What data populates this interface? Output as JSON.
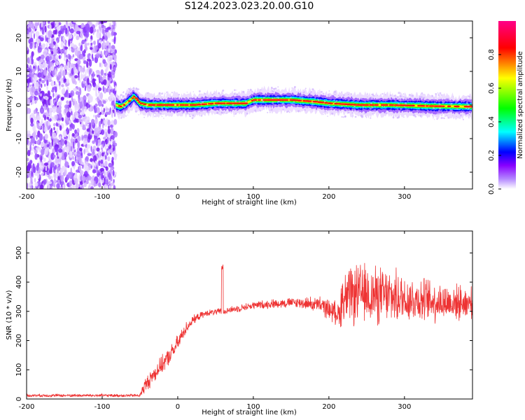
{
  "title": "S124.2023.023.20.00.G10",
  "chart_data": [
    {
      "type": "heatmap",
      "xlabel": "Height of straight line (km)",
      "ylabel": "Frequency (Hz)",
      "xlim": [
        -200,
        390
      ],
      "ylim": [
        -25,
        25
      ],
      "xticks": [
        -200,
        -100,
        0,
        100,
        200,
        300
      ],
      "yticks": [
        -20,
        -10,
        0,
        10,
        20
      ],
      "colorbar": {
        "label": "Normalized spectral amplitude",
        "range": [
          0,
          1
        ],
        "ticks": [
          0.0,
          0.2,
          0.4,
          0.6,
          0.8
        ],
        "colors": [
          "#ffffff",
          "#8800ff",
          "#0000ff",
          "#00ffff",
          "#00ff00",
          "#ffff00",
          "#ff0000",
          "#ff0088"
        ]
      },
      "noise_region_x": [
        -200,
        -82
      ],
      "ridge_center": [
        [
          -82,
          0.0
        ],
        [
          -75,
          -0.5
        ],
        [
          -68,
          0.5
        ],
        [
          -58,
          2.5
        ],
        [
          -50,
          0.5
        ],
        [
          -40,
          0.0
        ],
        [
          -20,
          0.0
        ],
        [
          0,
          0.0
        ],
        [
          20,
          0.0
        ],
        [
          50,
          0.5
        ],
        [
          90,
          0.5
        ],
        [
          100,
          1.5
        ],
        [
          150,
          1.5
        ],
        [
          180,
          1.0
        ],
        [
          200,
          0.5
        ],
        [
          240,
          0.0
        ],
        [
          280,
          0.0
        ],
        [
          330,
          -0.3
        ],
        [
          390,
          -0.5
        ]
      ]
    },
    {
      "type": "line",
      "xlabel": "Height of straight line (km)",
      "ylabel": "SNR (10 * v/v)",
      "xlim": [
        -200,
        390
      ],
      "ylim": [
        0,
        575
      ],
      "xticks": [
        -200,
        -100,
        0,
        100,
        200,
        300
      ],
      "yticks": [
        0,
        100,
        200,
        300,
        400,
        500
      ],
      "color": "#ee3333",
      "envelope_x": [
        -200,
        -50,
        -45,
        -30,
        -20,
        -10,
        0,
        10,
        20,
        30,
        40,
        60,
        80,
        100,
        120,
        150,
        170,
        190,
        205,
        215,
        216,
        240,
        260,
        280,
        300,
        320,
        340,
        360,
        390
      ],
      "envelope_mean": [
        12,
        12,
        40,
        90,
        120,
        150,
        190,
        240,
        270,
        285,
        295,
        300,
        310,
        320,
        325,
        330,
        328,
        320,
        300,
        290,
        340,
        360,
        355,
        350,
        345,
        340,
        335,
        330,
        330
      ],
      "envelope_spread": [
        6,
        6,
        30,
        35,
        35,
        35,
        35,
        25,
        18,
        14,
        12,
        14,
        14,
        16,
        18,
        20,
        25,
        35,
        45,
        50,
        110,
        120,
        120,
        110,
        100,
        90,
        85,
        75,
        60
      ],
      "spike": {
        "x": 59,
        "y": 460
      }
    }
  ]
}
